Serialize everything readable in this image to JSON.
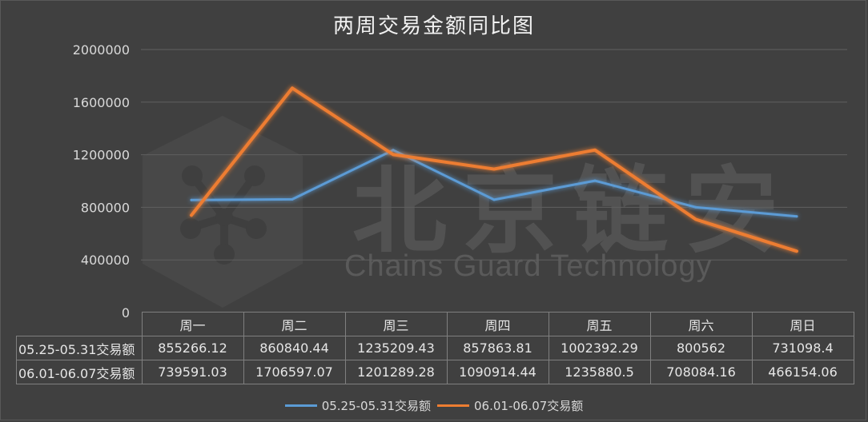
{
  "chart_data": {
    "type": "line",
    "title": "两周交易金额同比图",
    "categories": [
      "周一",
      "周二",
      "周三",
      "周四",
      "周五",
      "周六",
      "周日"
    ],
    "series": [
      {
        "name": "05.25-05.31交易额",
        "color": "#5b9bd5",
        "values": [
          855266.12,
          860840.44,
          1235209.43,
          857863.81,
          1002392.29,
          800562,
          731098.4
        ],
        "labels": [
          "855266.12",
          "860840.44",
          "1235209.43",
          "857863.81",
          "1002392.29",
          "800562",
          "731098.4"
        ]
      },
      {
        "name": "06.01-06.07交易额",
        "color": "#ed7d31",
        "values": [
          739591.03,
          1706597.07,
          1201289.28,
          1090914.44,
          1235880.5,
          708084.16,
          466154.06
        ],
        "labels": [
          "739591.03",
          "1706597.07",
          "1201289.28",
          "1090914.44",
          "1235880.5",
          "708084.16",
          "466154.06"
        ]
      }
    ],
    "yticks": [
      "0",
      "400000",
      "800000",
      "1200000",
      "1600000",
      "2000000"
    ],
    "ylim": [
      0,
      2000000
    ],
    "grid": true,
    "legend": "bottom",
    "data_table": true
  },
  "watermark": {
    "cn": "北京链安",
    "en": "Chains Guard Technology"
  }
}
